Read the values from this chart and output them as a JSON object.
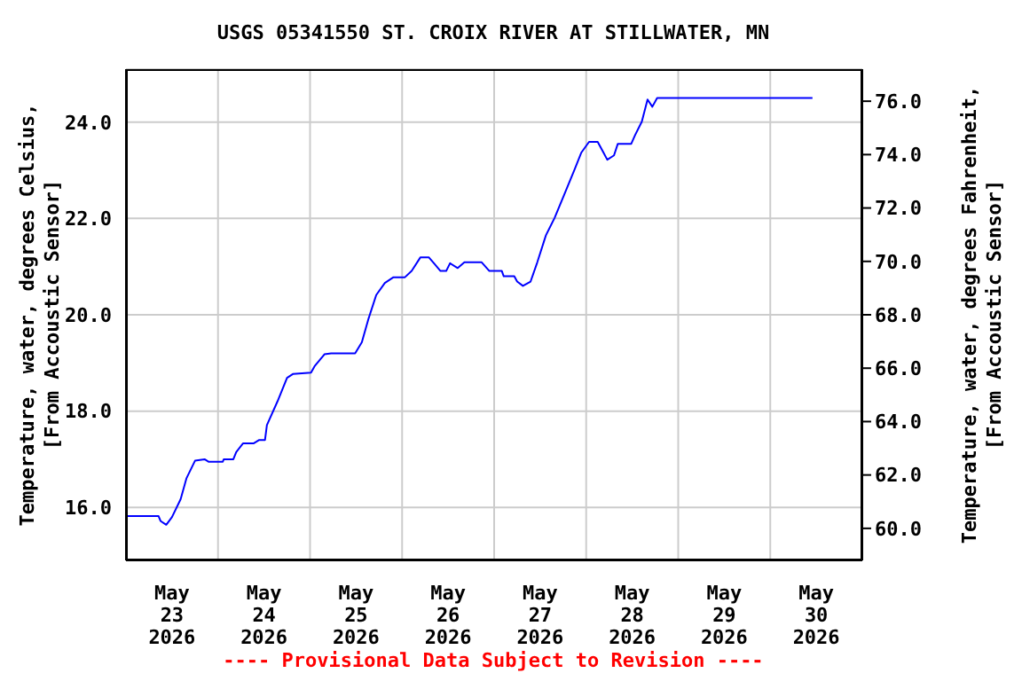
{
  "chart_data": {
    "type": "line",
    "title": "USGS 05341550 ST. CROIX RIVER AT STILLWATER, MN",
    "ylabel": "Temperature, water, degrees Celsius,\n[From Accoustic Sensor]",
    "y2label": "Temperature, water, degrees Fahrenheit,\n[From Accoustic Sensor]",
    "annotations": [
      "---- Provisional Data Subject to Revision ----"
    ],
    "color": "#0000ff",
    "x": [
      "2026-05-23T00:00",
      "2026-05-23T08:30",
      "2026-05-23T09:00",
      "2026-05-23T10:30",
      "2026-05-23T12:00",
      "2026-05-23T14:15",
      "2026-05-23T15:45",
      "2026-05-23T18:00",
      "2026-05-23T20:30",
      "2026-05-23T21:30",
      "2026-05-24T01:15",
      "2026-05-24T01:30",
      "2026-05-24T04:00",
      "2026-05-24T04:45",
      "2026-05-24T06:30",
      "2026-05-24T09:15",
      "2026-05-24T10:45",
      "2026-05-24T12:15",
      "2026-05-24T12:45",
      "2026-05-24T15:30",
      "2026-05-24T18:00",
      "2026-05-24T19:30",
      "2026-05-25T00:15",
      "2026-05-25T01:15",
      "2026-05-25T03:45",
      "2026-05-25T05:30",
      "2026-05-25T11:45",
      "2026-05-25T13:30",
      "2026-05-25T15:15",
      "2026-05-25T17:15",
      "2026-05-25T19:30",
      "2026-05-25T21:45",
      "2026-05-26T00:45",
      "2026-05-26T02:30",
      "2026-05-26T04:45",
      "2026-05-26T07:00",
      "2026-05-26T08:30",
      "2026-05-26T10:00",
      "2026-05-26T11:30",
      "2026-05-26T12:30",
      "2026-05-26T14:30",
      "2026-05-26T16:15",
      "2026-05-26T20:45",
      "2026-05-26T22:45",
      "2026-05-27T02:00",
      "2026-05-27T02:30",
      "2026-05-27T05:15",
      "2026-05-27T06:00",
      "2026-05-27T07:30",
      "2026-05-27T09:30",
      "2026-05-27T11:15",
      "2026-05-27T13:30",
      "2026-05-27T15:45",
      "2026-05-27T18:00",
      "2026-05-27T21:00",
      "2026-05-27T22:45",
      "2026-05-28T00:45",
      "2026-05-28T03:00",
      "2026-05-28T04:30",
      "2026-05-28T05:30",
      "2026-05-28T07:15",
      "2026-05-28T08:15",
      "2026-05-28T11:45",
      "2026-05-28T12:45",
      "2026-05-28T14:30",
      "2026-05-28T16:00",
      "2026-05-28T17:15",
      "2026-05-28T18:30",
      "2026-05-30T11:00"
    ],
    "values": [
      15.82,
      15.82,
      15.72,
      15.64,
      15.8,
      16.17,
      16.6,
      16.97,
      17.0,
      16.95,
      16.95,
      17.0,
      17.0,
      17.15,
      17.33,
      17.33,
      17.4,
      17.4,
      17.71,
      18.2,
      18.69,
      18.77,
      18.8,
      18.94,
      19.18,
      19.2,
      19.2,
      19.43,
      19.92,
      20.41,
      20.66,
      20.78,
      20.78,
      20.91,
      21.19,
      21.19,
      21.05,
      20.91,
      20.91,
      21.07,
      20.97,
      21.09,
      21.09,
      20.91,
      20.91,
      20.8,
      20.8,
      20.69,
      20.6,
      20.69,
      21.09,
      21.65,
      22.01,
      22.44,
      23.02,
      23.37,
      23.59,
      23.59,
      23.37,
      23.22,
      23.31,
      23.55,
      23.55,
      23.73,
      24.01,
      24.47,
      24.32,
      24.5,
      24.5
    ],
    "xlim": [
      "2026-05-23T00:00",
      "2026-05-31T00:00"
    ],
    "xticks": [
      {
        "value": "2026-05-23T12:00",
        "label": "May\n23\n2026"
      },
      {
        "value": "2026-05-24T00:00",
        "label": null
      },
      {
        "value": "2026-05-24T12:00",
        "label": "May\n24\n2026"
      },
      {
        "value": "2026-05-25T00:00",
        "label": null
      },
      {
        "value": "2026-05-25T12:00",
        "label": "May\n25\n2026"
      },
      {
        "value": "2026-05-26T00:00",
        "label": null
      },
      {
        "value": "2026-05-26T12:00",
        "label": "May\n26\n2026"
      },
      {
        "value": "2026-05-27T00:00",
        "label": null
      },
      {
        "value": "2026-05-27T12:00",
        "label": "May\n27\n2026"
      },
      {
        "value": "2026-05-28T00:00",
        "label": null
      },
      {
        "value": "2026-05-28T12:00",
        "label": "May\n28\n2026"
      },
      {
        "value": "2026-05-29T00:00",
        "label": null
      },
      {
        "value": "2026-05-29T12:00",
        "label": "May\n29\n2026"
      },
      {
        "value": "2026-05-30T00:00",
        "label": null
      },
      {
        "value": "2026-05-30T12:00",
        "label": "May\n30\n2026"
      }
    ],
    "ylim": [
      14.9,
      25.1
    ],
    "yticks": [
      {
        "value": 16,
        "label": "16.0"
      },
      {
        "value": 18,
        "label": "18.0"
      },
      {
        "value": 20,
        "label": "20.0"
      },
      {
        "value": 22,
        "label": "22.0"
      },
      {
        "value": 24,
        "label": "24.0"
      }
    ],
    "y2lim": [
      58.8,
      77.2
    ],
    "y2ticks": [
      {
        "value": 60,
        "label": "60.0"
      },
      {
        "value": 62,
        "label": "62.0"
      },
      {
        "value": 64,
        "label": "64.0"
      },
      {
        "value": 66,
        "label": "66.0"
      },
      {
        "value": 68,
        "label": "68.0"
      },
      {
        "value": 70,
        "label": "70.0"
      },
      {
        "value": 72,
        "label": "72.0"
      },
      {
        "value": 74,
        "label": "74.0"
      },
      {
        "value": 76,
        "label": "76.0"
      }
    ],
    "grid": true
  }
}
